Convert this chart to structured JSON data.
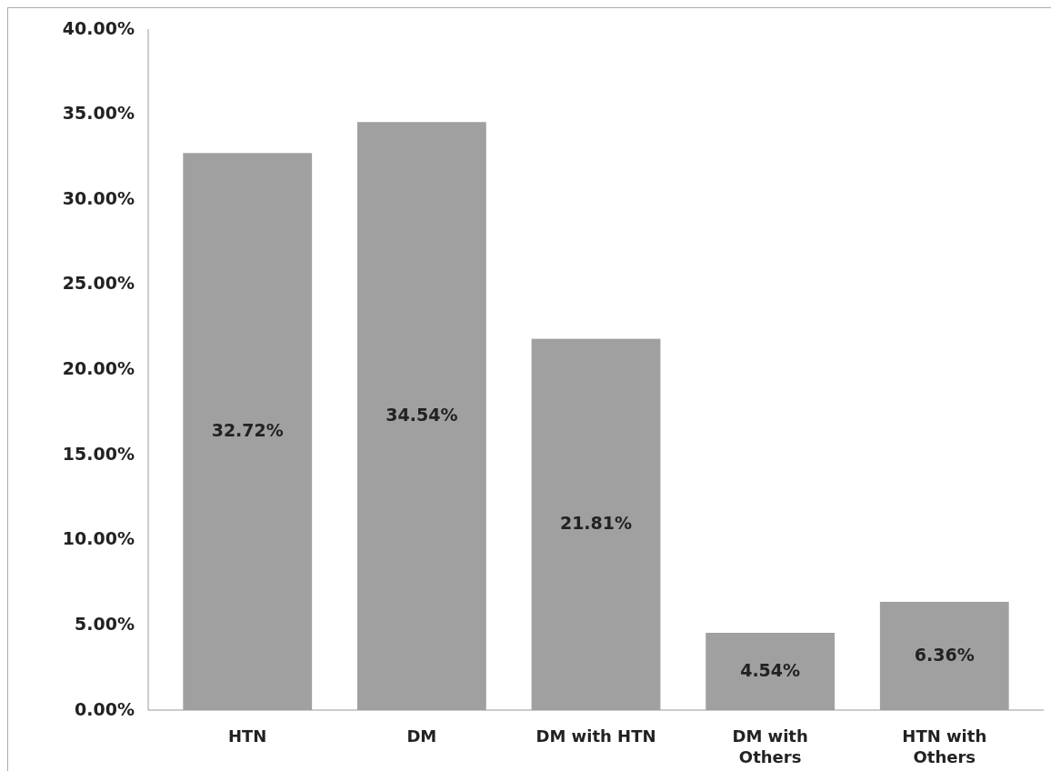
{
  "chart_data": {
    "type": "bar",
    "categories": [
      "HTN",
      "DM",
      "DM with HTN",
      "DM with Others",
      "HTN with Others"
    ],
    "values": [
      32.72,
      34.54,
      21.81,
      4.54,
      6.36
    ],
    "value_labels": [
      "32.72%",
      "34.54%",
      "21.81%",
      "4.54%",
      "6.36%"
    ],
    "color": "#a0a0a0",
    "ylim": [
      0,
      40
    ],
    "yticks": [
      {
        "value": 0,
        "label": "0.00%"
      },
      {
        "value": 5,
        "label": "5.00%"
      },
      {
        "value": 10,
        "label": "10.00%"
      },
      {
        "value": 15,
        "label": "15.00%"
      },
      {
        "value": 20,
        "label": "20.00%"
      },
      {
        "value": 25,
        "label": "25.00%"
      },
      {
        "value": 30,
        "label": "30.00%"
      },
      {
        "value": 35,
        "label": "35.00%"
      },
      {
        "value": 40,
        "label": "40.00%"
      }
    ],
    "grid": false
  }
}
